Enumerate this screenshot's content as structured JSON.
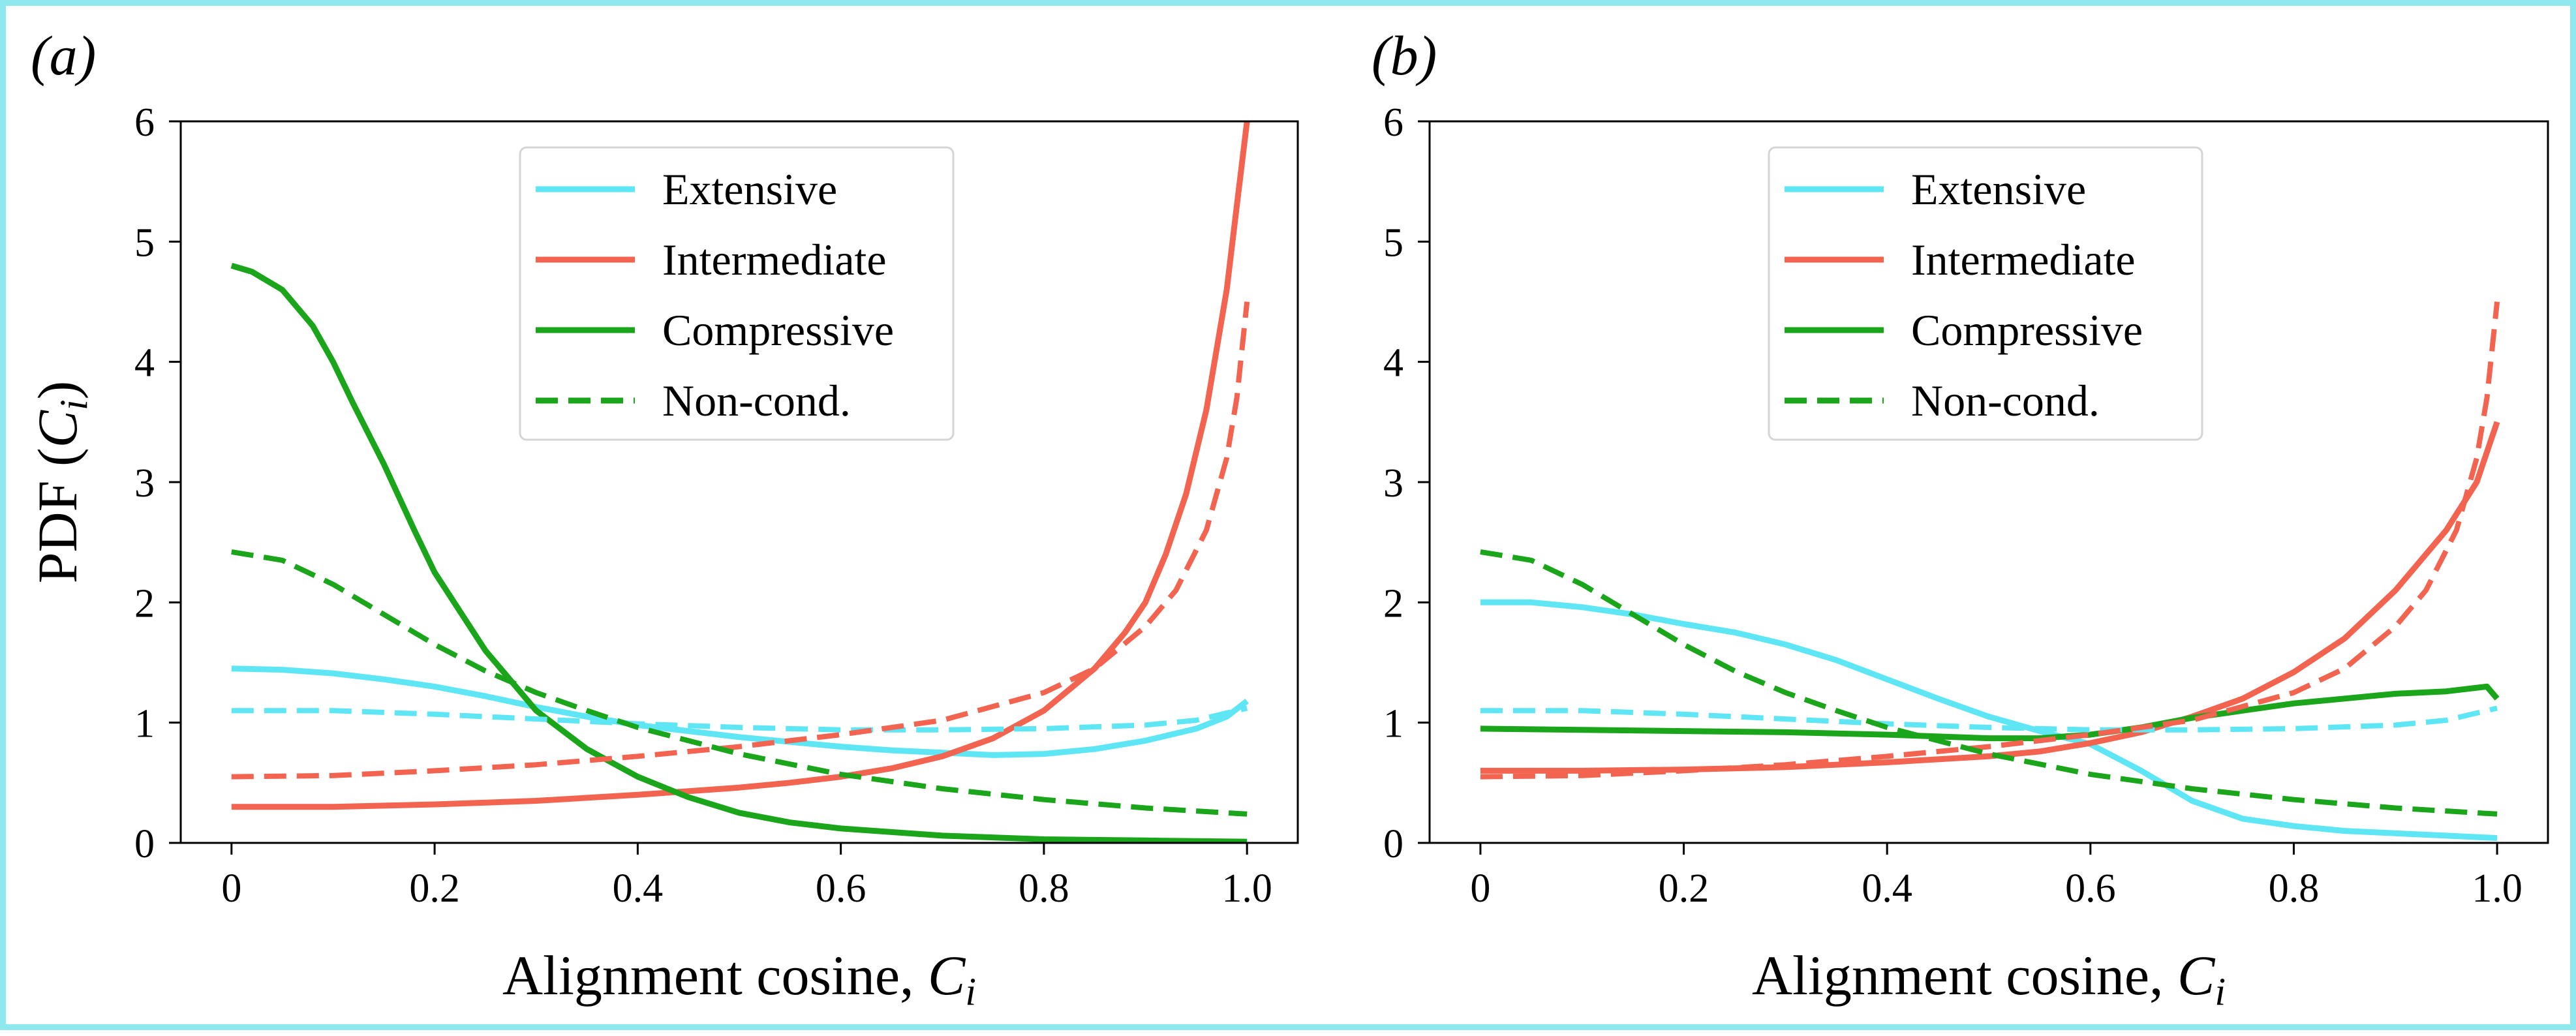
{
  "chart_data": [
    {
      "type": "line",
      "panel_label": "(a)",
      "xlabel": "Alignment cosine, C_i",
      "xlabel_main": "Alignment cosine, ",
      "xlabel_var": "C",
      "xlabel_sub": "i",
      "ylabel_main": "PDF (",
      "ylabel_var": "C",
      "ylabel_sub": "i",
      "ylabel_close": ")",
      "xlim": [
        -0.05,
        1.05
      ],
      "ylim": [
        0,
        6
      ],
      "xticks": [
        0,
        0.2,
        0.4,
        0.6,
        0.8,
        1.0
      ],
      "xtick_labels": [
        "0",
        "0.2",
        "0.4",
        "0.6",
        "0.8",
        "1.0"
      ],
      "yticks": [
        0,
        1,
        2,
        3,
        4,
        5,
        6
      ],
      "ytick_labels": [
        "0",
        "1",
        "2",
        "3",
        "4",
        "5",
        "6"
      ],
      "show_ylabel": true,
      "grid": false,
      "legend_position": "top-center",
      "series": [
        {
          "name": "Extensive",
          "color": "#5ee6f5",
          "style": "solid",
          "x": [
            0,
            0.05,
            0.1,
            0.15,
            0.2,
            0.25,
            0.3,
            0.35,
            0.4,
            0.45,
            0.5,
            0.55,
            0.6,
            0.65,
            0.7,
            0.75,
            0.8,
            0.85,
            0.9,
            0.95,
            0.98,
            1.0
          ],
          "y": [
            1.45,
            1.44,
            1.41,
            1.36,
            1.3,
            1.22,
            1.13,
            1.05,
            0.98,
            0.93,
            0.88,
            0.84,
            0.8,
            0.77,
            0.75,
            0.73,
            0.74,
            0.78,
            0.85,
            0.95,
            1.05,
            1.18
          ]
        },
        {
          "name": "Intermediate",
          "color": "#f26450",
          "style": "solid",
          "x": [
            0,
            0.1,
            0.2,
            0.3,
            0.4,
            0.45,
            0.5,
            0.55,
            0.6,
            0.65,
            0.7,
            0.75,
            0.8,
            0.85,
            0.88,
            0.9,
            0.92,
            0.94,
            0.96,
            0.98,
            0.99,
            1.0
          ],
          "y": [
            0.3,
            0.3,
            0.32,
            0.35,
            0.4,
            0.43,
            0.46,
            0.5,
            0.55,
            0.62,
            0.72,
            0.87,
            1.1,
            1.45,
            1.75,
            2.0,
            2.4,
            2.9,
            3.6,
            4.6,
            5.3,
            6.0
          ]
        },
        {
          "name": "Compressive",
          "color": "#1aa51a",
          "style": "solid",
          "x": [
            0,
            0.02,
            0.05,
            0.08,
            0.1,
            0.12,
            0.15,
            0.18,
            0.2,
            0.25,
            0.3,
            0.35,
            0.4,
            0.45,
            0.5,
            0.55,
            0.6,
            0.7,
            0.8,
            0.9,
            1.0
          ],
          "y": [
            4.8,
            4.75,
            4.6,
            4.3,
            4.0,
            3.65,
            3.15,
            2.6,
            2.25,
            1.6,
            1.1,
            0.78,
            0.55,
            0.38,
            0.25,
            0.17,
            0.12,
            0.06,
            0.03,
            0.02,
            0.01
          ]
        },
        {
          "name": "Non-cond. (extensive)",
          "color": "#5ee6f5",
          "style": "dashed",
          "x": [
            0,
            0.1,
            0.2,
            0.3,
            0.4,
            0.5,
            0.6,
            0.7,
            0.8,
            0.9,
            0.95,
            1.0
          ],
          "y": [
            1.1,
            1.1,
            1.07,
            1.03,
            0.99,
            0.96,
            0.94,
            0.94,
            0.95,
            0.98,
            1.02,
            1.12
          ]
        },
        {
          "name": "Non-cond. (intermediate)",
          "color": "#f26450",
          "style": "dashed",
          "x": [
            0,
            0.1,
            0.2,
            0.3,
            0.4,
            0.5,
            0.6,
            0.7,
            0.8,
            0.85,
            0.9,
            0.93,
            0.96,
            0.98,
            0.99,
            1.0
          ],
          "y": [
            0.55,
            0.56,
            0.6,
            0.65,
            0.72,
            0.8,
            0.9,
            1.02,
            1.25,
            1.45,
            1.8,
            2.1,
            2.6,
            3.2,
            3.7,
            4.5
          ]
        },
        {
          "name": "Non-cond.",
          "color": "#1aa51a",
          "style": "dashed",
          "x": [
            0,
            0.05,
            0.1,
            0.15,
            0.2,
            0.25,
            0.3,
            0.35,
            0.4,
            0.5,
            0.6,
            0.7,
            0.8,
            0.9,
            1.0
          ],
          "y": [
            2.42,
            2.35,
            2.15,
            1.9,
            1.65,
            1.43,
            1.25,
            1.1,
            0.96,
            0.74,
            0.57,
            0.45,
            0.36,
            0.29,
            0.24
          ]
        }
      ]
    },
    {
      "type": "line",
      "panel_label": "(b)",
      "xlabel": "Alignment cosine, C_i",
      "xlabel_main": "Alignment cosine, ",
      "xlabel_var": "C",
      "xlabel_sub": "i",
      "xlim": [
        -0.05,
        1.05
      ],
      "ylim": [
        0,
        6
      ],
      "xticks": [
        0,
        0.2,
        0.4,
        0.6,
        0.8,
        1.0
      ],
      "xtick_labels": [
        "0",
        "0.2",
        "0.4",
        "0.6",
        "0.8",
        "1.0"
      ],
      "yticks": [
        0,
        1,
        2,
        3,
        4,
        5,
        6
      ],
      "ytick_labels": [
        "0",
        "1",
        "2",
        "3",
        "4",
        "5",
        "6"
      ],
      "show_ylabel": false,
      "grid": false,
      "legend_position": "top-center",
      "series": [
        {
          "name": "Extensive",
          "color": "#5ee6f5",
          "style": "solid",
          "x": [
            0,
            0.05,
            0.1,
            0.15,
            0.2,
            0.25,
            0.3,
            0.35,
            0.4,
            0.45,
            0.5,
            0.55,
            0.6,
            0.65,
            0.7,
            0.75,
            0.8,
            0.85,
            0.9,
            0.95,
            1.0
          ],
          "y": [
            2.0,
            2.0,
            1.96,
            1.9,
            1.82,
            1.75,
            1.65,
            1.52,
            1.36,
            1.2,
            1.05,
            0.93,
            0.82,
            0.6,
            0.35,
            0.2,
            0.14,
            0.1,
            0.08,
            0.06,
            0.04
          ]
        },
        {
          "name": "Intermediate",
          "color": "#f26450",
          "style": "solid",
          "x": [
            0,
            0.1,
            0.2,
            0.3,
            0.4,
            0.5,
            0.55,
            0.6,
            0.65,
            0.7,
            0.75,
            0.8,
            0.85,
            0.9,
            0.95,
            0.98,
            1.0
          ],
          "y": [
            0.6,
            0.6,
            0.61,
            0.63,
            0.67,
            0.72,
            0.76,
            0.83,
            0.92,
            1.05,
            1.2,
            1.42,
            1.7,
            2.1,
            2.6,
            3.0,
            3.5
          ]
        },
        {
          "name": "Compressive",
          "color": "#1aa51a",
          "style": "solid",
          "x": [
            0,
            0.1,
            0.2,
            0.3,
            0.4,
            0.5,
            0.55,
            0.6,
            0.65,
            0.7,
            0.75,
            0.8,
            0.85,
            0.9,
            0.95,
            0.99,
            1.0
          ],
          "y": [
            0.95,
            0.94,
            0.93,
            0.92,
            0.9,
            0.87,
            0.87,
            0.9,
            0.96,
            1.04,
            1.1,
            1.16,
            1.2,
            1.24,
            1.26,
            1.3,
            1.2
          ]
        },
        {
          "name": "Non-cond. (extensive)",
          "color": "#5ee6f5",
          "style": "dashed",
          "x": [
            0,
            0.1,
            0.2,
            0.3,
            0.4,
            0.5,
            0.6,
            0.7,
            0.8,
            0.9,
            0.95,
            1.0
          ],
          "y": [
            1.1,
            1.1,
            1.07,
            1.03,
            0.99,
            0.96,
            0.94,
            0.94,
            0.95,
            0.98,
            1.02,
            1.12
          ]
        },
        {
          "name": "Non-cond. (intermediate)",
          "color": "#f26450",
          "style": "dashed",
          "x": [
            0,
            0.1,
            0.2,
            0.3,
            0.4,
            0.5,
            0.6,
            0.7,
            0.8,
            0.85,
            0.9,
            0.93,
            0.96,
            0.98,
            0.99,
            1.0
          ],
          "y": [
            0.55,
            0.56,
            0.6,
            0.65,
            0.72,
            0.8,
            0.9,
            1.02,
            1.25,
            1.45,
            1.8,
            2.1,
            2.6,
            3.2,
            3.7,
            4.5
          ]
        },
        {
          "name": "Non-cond.",
          "color": "#1aa51a",
          "style": "dashed",
          "x": [
            0,
            0.05,
            0.1,
            0.15,
            0.2,
            0.25,
            0.3,
            0.35,
            0.4,
            0.5,
            0.6,
            0.7,
            0.8,
            0.9,
            1.0
          ],
          "y": [
            2.42,
            2.35,
            2.15,
            1.9,
            1.65,
            1.43,
            1.25,
            1.1,
            0.96,
            0.74,
            0.57,
            0.45,
            0.36,
            0.29,
            0.24
          ]
        }
      ]
    }
  ],
  "legend": {
    "entries": [
      {
        "label": "Extensive",
        "color": "#5ee6f5",
        "style": "solid"
      },
      {
        "label": "Intermediate",
        "color": "#f26450",
        "style": "solid"
      },
      {
        "label": "Compressive",
        "color": "#1aa51a",
        "style": "solid"
      },
      {
        "label": "Non-cond.",
        "color": "#1aa51a",
        "style": "dashed"
      }
    ]
  },
  "colors": {
    "extensive": "#5ee6f5",
    "intermediate": "#f26450",
    "compressive": "#1aa51a",
    "frame_border": "#8ee8ee"
  }
}
